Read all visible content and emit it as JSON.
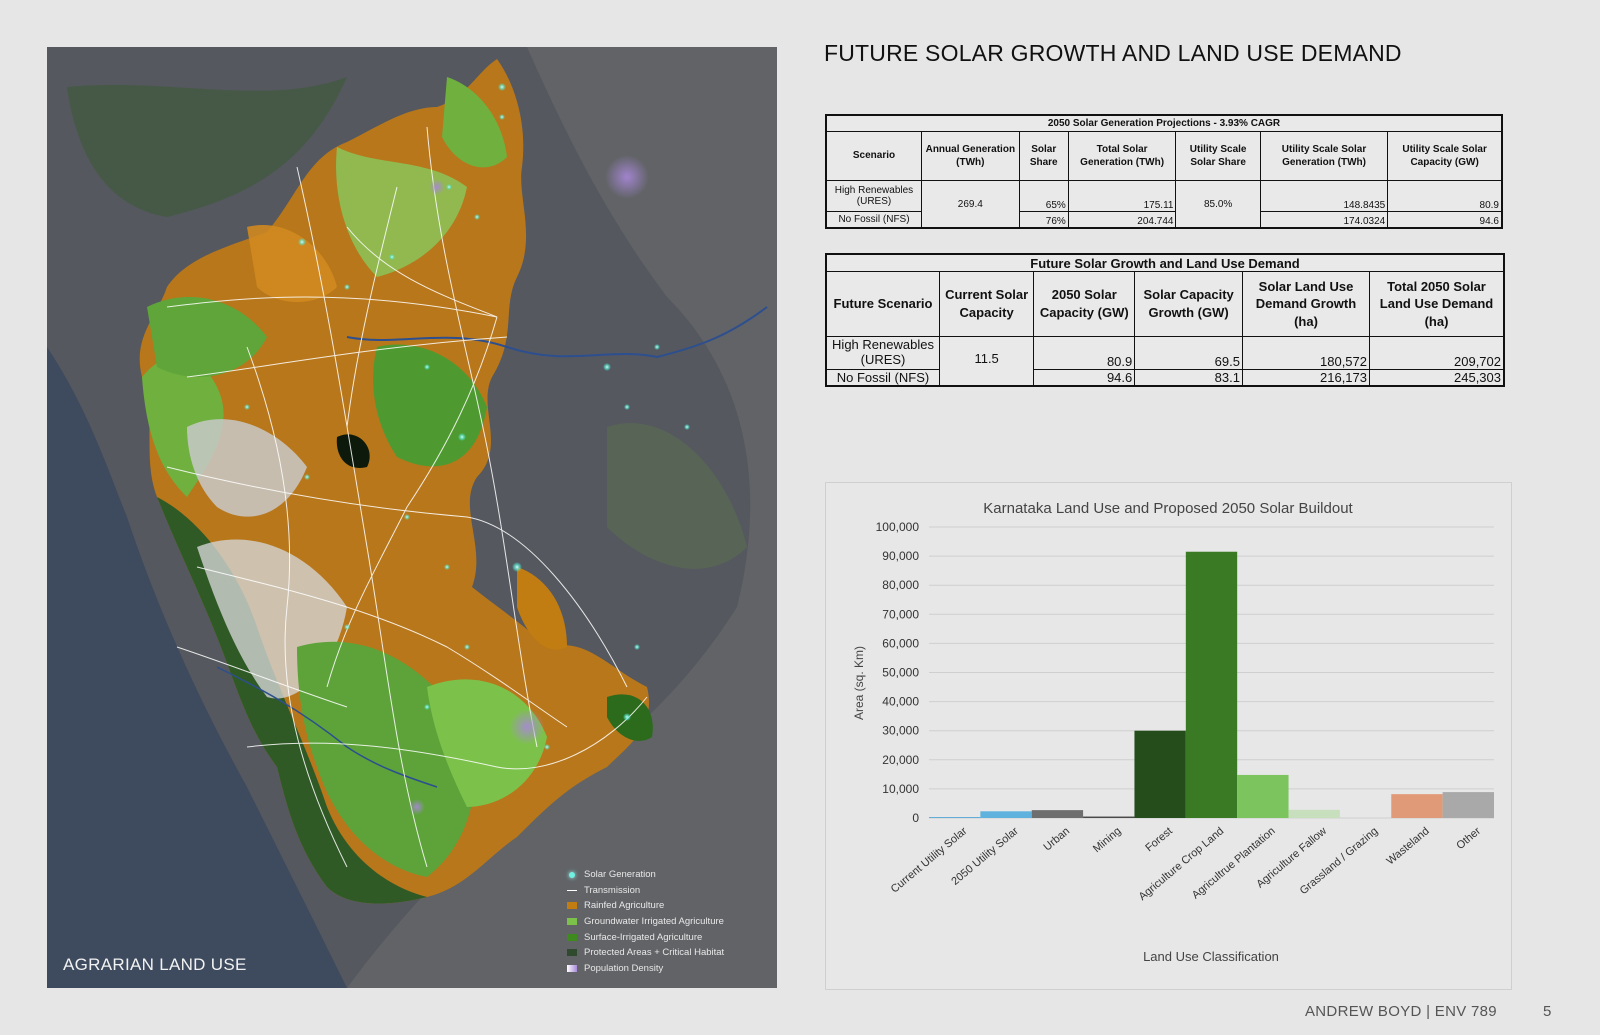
{
  "map": {
    "title": "AGRARIAN LAND USE",
    "legend": [
      {
        "label": "Solar Generation",
        "kind": "dot",
        "color": "#6ff0e0"
      },
      {
        "label": "Transmission",
        "kind": "line",
        "color": "#ffffff"
      },
      {
        "label": "Rainfed Agriculture",
        "kind": "box",
        "color": "#c27d12"
      },
      {
        "label": "Groundwater Irrigated Agriculture",
        "kind": "box",
        "color": "#7cc24a"
      },
      {
        "label": "Surface-Irrigated Agriculture",
        "kind": "box",
        "color": "#3f8a1f"
      },
      {
        "label": "Protected Areas + Critical Habitat",
        "kind": "box",
        "color": "#2f4a2c"
      },
      {
        "label": "Population Density",
        "kind": "box",
        "color": "#c8b8e8"
      }
    ]
  },
  "page": {
    "title": "FUTURE SOLAR GROWTH AND LAND USE DEMAND",
    "footer_name": "ANDREW BOYD | ENV 789",
    "page_number": "5"
  },
  "table1": {
    "caption": "2050 Solar Generation Projections - 3.93% CAGR",
    "headers": [
      "Scenario",
      "Annual Generation (TWh)",
      "Solar Share",
      "Total Solar Generation (TWh)",
      "Utility Scale Solar Share",
      "Utility Scale Solar Generation (TWh)",
      "Utility Scale Solar Capacity (GW)"
    ],
    "annual_generation": "269.4",
    "utility_share": "85.0%",
    "rows": [
      {
        "scenario": "High Renewables (URES)",
        "solar_share": "65%",
        "total_solar": "175.11",
        "utility_gen": "148.8435",
        "utility_cap": "80.9"
      },
      {
        "scenario": "No Fossil (NFS)",
        "solar_share": "76%",
        "total_solar": "204.744",
        "utility_gen": "174.0324",
        "utility_cap": "94.6"
      }
    ]
  },
  "table2": {
    "caption": "Future Solar Growth and Land Use Demand",
    "headers": [
      "Future Scenario",
      "Current Solar Capacity",
      "2050 Solar Capacity (GW)",
      "Solar Capacity Growth (GW)",
      "Solar Land Use Demand Growth (ha)",
      "Total 2050 Solar Land Use Demand (ha)"
    ],
    "current_capacity": "11.5",
    "rows": [
      {
        "scenario": "High Renewables (URES)",
        "cap_2050": "80.9",
        "growth": "69.5",
        "land_growth": "180,572",
        "land_total": "209,702"
      },
      {
        "scenario": "No Fossil (NFS)",
        "cap_2050": "94.6",
        "growth": "83.1",
        "land_growth": "216,173",
        "land_total": "245,303"
      }
    ]
  },
  "chart_data": {
    "type": "bar",
    "title": "Karnataka Land Use and Proposed 2050 Solar Buildout",
    "xlabel": "Land Use Classification",
    "ylabel": "Area (sq. Km)",
    "ylim": [
      0,
      100000
    ],
    "yticks": [
      "0",
      "10,000",
      "20,000",
      "30,000",
      "40,000",
      "50,000",
      "60,000",
      "70,000",
      "80,000",
      "90,000",
      "100,000"
    ],
    "grid": true,
    "categories": [
      "Current Utility Solar",
      "2050 Utility Solar",
      "Urban",
      "Mining",
      "Forest",
      "Agriculture Crop Land",
      "Agricultrue Plantation",
      "Agriculture Fallow",
      "Grassland / Grazing",
      "Wasteland",
      "Other"
    ],
    "values": [
      300,
      2300,
      2700,
      500,
      30000,
      91500,
      14800,
      2800,
      0,
      8200,
      8900
    ],
    "colors": [
      "#4fa6d6",
      "#5fb2dd",
      "#6e6e6e",
      "#4a4a4a",
      "#244d1b",
      "#3b7a25",
      "#7cc45e",
      "#c7dfbc",
      "#cfcfcf",
      "#e09a77",
      "#a9a9a9"
    ]
  }
}
